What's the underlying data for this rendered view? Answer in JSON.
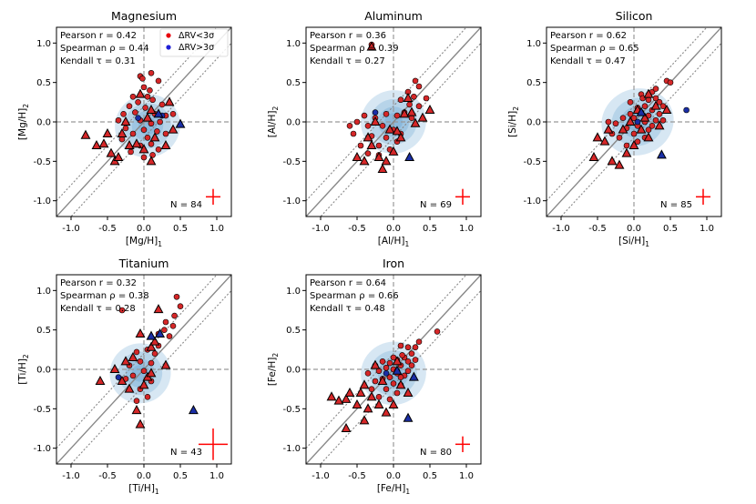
{
  "figure": {
    "legend": {
      "items": [
        {
          "label": "ΔRV<3σ",
          "color": "#e8000b"
        },
        {
          "label": "ΔRV>3σ",
          "color": "#1f1fd6"
        }
      ]
    },
    "colors": {
      "low_rv": "#d62728",
      "high_rv": "#1a2ea6",
      "kde": "#4a90c8",
      "identity": "#888888",
      "zero": "#999999",
      "error_cross": "#ff0000"
    },
    "tick_labels": [
      "-1.0",
      "-0.5",
      "0.0",
      "0.5",
      "1.0"
    ],
    "tick_values": [
      -1.0,
      -0.5,
      0.0,
      0.5,
      1.0
    ]
  },
  "chart_data": [
    {
      "type": "scatter",
      "id": "mg",
      "title": "Magnesium",
      "xlabel": "[Mg/H]",
      "ylabel": "[Mg/H]",
      "xlabel_sub": "1",
      "ylabel_sub": "2",
      "xlim": [
        -1.2,
        1.2
      ],
      "ylim": [
        -1.2,
        1.2
      ],
      "stats": [
        "Pearson r = 0.42",
        "Spearman ρ = 0.44",
        "Kendall τ = 0.31"
      ],
      "n_label": "N = 84",
      "err": [
        0.1,
        0.1
      ],
      "show_legend": true,
      "kde_center": [
        0.05,
        -0.05
      ],
      "kde_spread": [
        0.45,
        0.4
      ],
      "circles_low": [
        [
          -0.05,
          0.58
        ],
        [
          0.1,
          0.62
        ],
        [
          -0.02,
          0.55
        ],
        [
          0.2,
          0.52
        ],
        [
          0.0,
          0.44
        ],
        [
          0.08,
          0.4
        ],
        [
          -0.15,
          0.32
        ],
        [
          0.05,
          0.32
        ],
        [
          -0.08,
          0.25
        ],
        [
          0.12,
          0.28
        ],
        [
          -0.2,
          0.2
        ],
        [
          0.02,
          0.18
        ],
        [
          0.25,
          0.22
        ],
        [
          -0.28,
          0.1
        ],
        [
          -0.12,
          0.12
        ],
        [
          0.15,
          0.1
        ],
        [
          0.3,
          0.08
        ],
        [
          -0.35,
          0.02
        ],
        [
          -0.05,
          0.02
        ],
        [
          0.1,
          -0.02
        ],
        [
          0.22,
          0.0
        ],
        [
          -0.25,
          -0.08
        ],
        [
          0.0,
          -0.1
        ],
        [
          0.18,
          -0.12
        ],
        [
          -0.15,
          -0.15
        ],
        [
          0.05,
          -0.2
        ],
        [
          -0.3,
          -0.22
        ],
        [
          0.1,
          -0.28
        ],
        [
          -0.05,
          -0.3
        ],
        [
          0.2,
          -0.35
        ],
        [
          -0.18,
          -0.38
        ],
        [
          0.0,
          -0.45
        ],
        [
          0.12,
          -0.42
        ],
        [
          0.3,
          -0.15
        ],
        [
          0.4,
          0.1
        ]
      ],
      "circles_high": [
        [
          -0.08,
          0.05
        ],
        [
          0.25,
          0.08
        ]
      ],
      "tri_low": [
        [
          -0.8,
          -0.17
        ],
        [
          -0.65,
          -0.3
        ],
        [
          -0.55,
          -0.28
        ],
        [
          -0.45,
          -0.4
        ],
        [
          -0.4,
          -0.5
        ],
        [
          -0.35,
          -0.45
        ],
        [
          -0.3,
          -0.15
        ],
        [
          -0.2,
          -0.3
        ],
        [
          -0.1,
          -0.28
        ],
        [
          0.0,
          -0.35
        ],
        [
          0.1,
          -0.5
        ],
        [
          -0.5,
          -0.15
        ],
        [
          -0.25,
          0.0
        ],
        [
          0.05,
          0.05
        ],
        [
          0.15,
          -0.2
        ],
        [
          0.3,
          -0.3
        ],
        [
          0.4,
          -0.1
        ],
        [
          0.35,
          0.25
        ],
        [
          0.1,
          0.15
        ],
        [
          -0.05,
          0.35
        ]
      ],
      "tri_high": [
        [
          0.2,
          0.1
        ],
        [
          0.5,
          -0.03
        ]
      ]
    },
    {
      "type": "scatter",
      "id": "al",
      "title": "Aluminum",
      "xlabel": "[Al/H]",
      "ylabel": "[Al/H]",
      "xlabel_sub": "1",
      "ylabel_sub": "2",
      "xlim": [
        -1.2,
        1.2
      ],
      "ylim": [
        -1.2,
        1.2
      ],
      "stats": [
        "Pearson r = 0.36",
        "Spearman ρ = 0.39",
        "Kendall τ = 0.27"
      ],
      "n_label": "N = 69",
      "err": [
        0.1,
        0.1
      ],
      "show_legend": false,
      "kde_center": [
        0.0,
        0.0
      ],
      "kde_spread": [
        0.45,
        0.4
      ],
      "circles_low": [
        [
          -0.3,
          0.98
        ],
        [
          0.3,
          0.52
        ],
        [
          0.35,
          0.45
        ],
        [
          0.2,
          0.38
        ],
        [
          0.28,
          0.32
        ],
        [
          0.1,
          0.28
        ],
        [
          0.22,
          0.22
        ],
        [
          0.35,
          0.2
        ],
        [
          0.15,
          0.12
        ],
        [
          0.05,
          0.08
        ],
        [
          -0.1,
          0.1
        ],
        [
          -0.25,
          0.05
        ],
        [
          -0.5,
          0.0
        ],
        [
          -0.35,
          -0.05
        ],
        [
          -0.15,
          -0.05
        ],
        [
          0.0,
          -0.1
        ],
        [
          -0.55,
          -0.15
        ],
        [
          -0.3,
          -0.18
        ],
        [
          -0.1,
          -0.2
        ],
        [
          0.1,
          -0.15
        ],
        [
          -0.45,
          -0.3
        ],
        [
          -0.2,
          -0.3
        ],
        [
          -0.05,
          -0.35
        ],
        [
          -0.35,
          -0.4
        ],
        [
          0.05,
          -0.25
        ],
        [
          0.25,
          0.05
        ],
        [
          0.45,
          0.3
        ],
        [
          -0.6,
          -0.05
        ],
        [
          -0.4,
          0.08
        ],
        [
          -0.2,
          -0.42
        ]
      ],
      "circles_high": [
        [
          -0.25,
          0.12
        ]
      ],
      "tri_low": [
        [
          -0.3,
          0.95
        ],
        [
          -0.5,
          -0.45
        ],
        [
          -0.4,
          -0.5
        ],
        [
          -0.35,
          -0.2
        ],
        [
          -0.3,
          -0.3
        ],
        [
          -0.2,
          -0.45
        ],
        [
          -0.1,
          -0.5
        ],
        [
          0.0,
          -0.38
        ],
        [
          -0.05,
          -0.1
        ],
        [
          0.1,
          -0.2
        ],
        [
          0.2,
          0.3
        ],
        [
          0.3,
          -0.02
        ],
        [
          0.4,
          0.05
        ],
        [
          0.5,
          0.15
        ],
        [
          -0.15,
          -0.6
        ],
        [
          0.05,
          -0.12
        ],
        [
          -0.25,
          0.0
        ],
        [
          0.15,
          0.1
        ],
        [
          0.25,
          0.12
        ]
      ],
      "tri_high": [
        [
          0.22,
          -0.45
        ]
      ]
    },
    {
      "type": "scatter",
      "id": "si",
      "title": "Silicon",
      "xlabel": "[Si/H]",
      "ylabel": "[Si/H]",
      "xlabel_sub": "1",
      "ylabel_sub": "2",
      "xlim": [
        -1.2,
        1.2
      ],
      "ylim": [
        -1.2,
        1.2
      ],
      "stats": [
        "Pearson r = 0.62",
        "Spearman ρ = 0.65",
        "Kendall τ = 0.47"
      ],
      "n_label": "N = 85",
      "err": [
        0.1,
        0.1
      ],
      "show_legend": false,
      "kde_center": [
        0.05,
        0.0
      ],
      "kde_spread": [
        0.5,
        0.42
      ],
      "circles_low": [
        [
          0.45,
          0.52
        ],
        [
          0.5,
          0.5
        ],
        [
          0.1,
          0.35
        ],
        [
          0.25,
          0.38
        ],
        [
          0.3,
          0.3
        ],
        [
          0.2,
          0.28
        ],
        [
          0.35,
          0.25
        ],
        [
          0.15,
          0.2
        ],
        [
          0.05,
          0.18
        ],
        [
          0.4,
          0.2
        ],
        [
          0.25,
          0.15
        ],
        [
          0.1,
          0.12
        ],
        [
          -0.05,
          0.1
        ],
        [
          0.2,
          0.08
        ],
        [
          0.35,
          0.1
        ],
        [
          0.0,
          0.05
        ],
        [
          -0.15,
          0.05
        ],
        [
          0.15,
          0.0
        ],
        [
          0.3,
          0.02
        ],
        [
          -0.25,
          -0.02
        ],
        [
          0.05,
          -0.05
        ],
        [
          -0.1,
          -0.08
        ],
        [
          0.2,
          -0.1
        ],
        [
          -0.3,
          -0.15
        ],
        [
          0.0,
          -0.15
        ],
        [
          0.15,
          -0.2
        ],
        [
          -0.2,
          -0.2
        ],
        [
          0.05,
          -0.25
        ],
        [
          -0.1,
          -0.3
        ],
        [
          0.25,
          -0.05
        ],
        [
          0.4,
          0.02
        ],
        [
          -0.05,
          0.25
        ],
        [
          0.3,
          0.42
        ],
        [
          -0.35,
          0.0
        ],
        [
          0.12,
          0.3
        ]
      ],
      "circles_high": [
        [
          0.05,
          0.0
        ],
        [
          0.72,
          0.15
        ]
      ],
      "tri_low": [
        [
          -0.55,
          -0.45
        ],
        [
          -0.5,
          -0.2
        ],
        [
          -0.4,
          -0.25
        ],
        [
          -0.3,
          -0.5
        ],
        [
          -0.2,
          -0.55
        ],
        [
          -0.1,
          -0.4
        ],
        [
          0.0,
          -0.3
        ],
        [
          0.1,
          -0.1
        ],
        [
          0.2,
          -0.2
        ],
        [
          0.35,
          -0.05
        ],
        [
          0.45,
          0.15
        ],
        [
          0.3,
          0.2
        ],
        [
          0.2,
          0.35
        ],
        [
          -0.15,
          -0.1
        ],
        [
          -0.05,
          0.0
        ],
        [
          0.05,
          0.15
        ],
        [
          -0.35,
          -0.1
        ],
        [
          0.15,
          0.05
        ]
      ],
      "tri_high": [
        [
          0.38,
          -0.42
        ],
        [
          0.1,
          0.12
        ]
      ]
    },
    {
      "type": "scatter",
      "id": "ti",
      "title": "Titanium",
      "xlabel": "[Ti/H]",
      "ylabel": "[Ti/H]",
      "xlabel_sub": "1",
      "ylabel_sub": "2",
      "xlim": [
        -1.2,
        1.2
      ],
      "ylim": [
        -1.2,
        1.2
      ],
      "stats": [
        "Pearson r = 0.32",
        "Spearman ρ = 0.38",
        "Kendall τ = 0.28"
      ],
      "n_label": "N = 43",
      "err": [
        0.2,
        0.2
      ],
      "show_legend": false,
      "kde_center": [
        -0.05,
        -0.05
      ],
      "kde_spread": [
        0.42,
        0.38
      ],
      "circles_low": [
        [
          0.45,
          0.92
        ],
        [
          0.5,
          0.8
        ],
        [
          0.42,
          0.68
        ],
        [
          0.4,
          0.55
        ],
        [
          0.3,
          0.6
        ],
        [
          0.35,
          0.42
        ],
        [
          -0.3,
          0.75
        ],
        [
          0.2,
          0.3
        ],
        [
          0.15,
          0.2
        ],
        [
          0.05,
          0.25
        ],
        [
          -0.1,
          0.22
        ],
        [
          0.1,
          0.08
        ],
        [
          -0.05,
          0.1
        ],
        [
          -0.2,
          0.05
        ],
        [
          0.0,
          -0.02
        ],
        [
          -0.15,
          -0.08
        ],
        [
          0.1,
          -0.15
        ],
        [
          -0.25,
          -0.12
        ],
        [
          -0.05,
          -0.25
        ],
        [
          0.05,
          -0.35
        ],
        [
          -0.1,
          -0.4
        ],
        [
          0.2,
          0.45
        ],
        [
          0.28,
          0.5
        ]
      ],
      "circles_high": [
        [
          -0.35,
          -0.1
        ]
      ],
      "tri_low": [
        [
          -0.6,
          -0.15
        ],
        [
          -0.4,
          0.0
        ],
        [
          -0.3,
          -0.15
        ],
        [
          -0.2,
          -0.25
        ],
        [
          -0.1,
          -0.52
        ],
        [
          -0.05,
          -0.7
        ],
        [
          0.0,
          -0.2
        ],
        [
          0.1,
          0.28
        ],
        [
          0.2,
          0.76
        ],
        [
          0.3,
          0.05
        ],
        [
          -0.15,
          0.15
        ],
        [
          0.05,
          -0.1
        ],
        [
          -0.25,
          0.1
        ],
        [
          0.15,
          0.35
        ],
        [
          -0.05,
          0.45
        ],
        [
          0.1,
          -0.05
        ]
      ],
      "tri_high": [
        [
          0.68,
          -0.52
        ],
        [
          0.22,
          0.45
        ],
        [
          0.1,
          0.42
        ]
      ]
    },
    {
      "type": "scatter",
      "id": "fe",
      "title": "Iron",
      "xlabel": "[Fe/H]",
      "ylabel": "[Fe/H]",
      "xlabel_sub": "1",
      "ylabel_sub": "2",
      "xlim": [
        -1.2,
        1.2
      ],
      "ylim": [
        -1.2,
        1.2
      ],
      "stats": [
        "Pearson r = 0.64",
        "Spearman ρ = 0.66",
        "Kendall τ = 0.48"
      ],
      "n_label": "N = 80",
      "err": [
        0.1,
        0.1
      ],
      "show_legend": false,
      "kde_center": [
        0.0,
        -0.05
      ],
      "kde_spread": [
        0.45,
        0.4
      ],
      "circles_low": [
        [
          0.6,
          0.48
        ],
        [
          0.35,
          0.35
        ],
        [
          0.3,
          0.28
        ],
        [
          0.2,
          0.28
        ],
        [
          0.1,
          0.3
        ],
        [
          0.25,
          0.2
        ],
        [
          0.15,
          0.15
        ],
        [
          0.05,
          0.12
        ],
        [
          0.2,
          0.1
        ],
        [
          -0.05,
          0.08
        ],
        [
          0.1,
          0.05
        ],
        [
          0.0,
          0.0
        ],
        [
          -0.1,
          0.02
        ],
        [
          0.05,
          -0.05
        ],
        [
          -0.2,
          -0.02
        ],
        [
          0.15,
          -0.08
        ],
        [
          -0.05,
          -0.1
        ],
        [
          -0.15,
          -0.12
        ],
        [
          0.0,
          -0.18
        ],
        [
          -0.25,
          -0.15
        ],
        [
          0.1,
          -0.2
        ],
        [
          -0.1,
          -0.25
        ],
        [
          -0.3,
          -0.25
        ],
        [
          0.05,
          -0.3
        ],
        [
          -0.2,
          -0.35
        ],
        [
          -0.05,
          -0.38
        ],
        [
          0.1,
          -0.1
        ],
        [
          -0.35,
          -0.05
        ],
        [
          0.2,
          -0.02
        ],
        [
          0.25,
          0.05
        ],
        [
          -0.15,
          0.1
        ],
        [
          0.0,
          0.15
        ],
        [
          -0.25,
          0.05
        ],
        [
          0.12,
          0.18
        ],
        [
          0.3,
          0.12
        ]
      ],
      "circles_high": [
        [
          -0.1,
          -0.05
        ],
        [
          0.05,
          -0.02
        ]
      ],
      "tri_low": [
        [
          -0.85,
          -0.35
        ],
        [
          -0.75,
          -0.4
        ],
        [
          -0.65,
          -0.38
        ],
        [
          -0.6,
          -0.3
        ],
        [
          -0.5,
          -0.45
        ],
        [
          -0.45,
          -0.3
        ],
        [
          -0.4,
          -0.2
        ],
        [
          -0.35,
          -0.5
        ],
        [
          -0.3,
          -0.35
        ],
        [
          -0.2,
          -0.45
        ],
        [
          -0.1,
          -0.55
        ],
        [
          0.0,
          -0.45
        ],
        [
          -0.65,
          -0.75
        ],
        [
          -0.4,
          -0.65
        ],
        [
          -0.25,
          0.05
        ],
        [
          0.1,
          -0.2
        ],
        [
          0.2,
          -0.3
        ],
        [
          -0.15,
          -0.15
        ],
        [
          0.05,
          0.1
        ]
      ],
      "tri_high": [
        [
          0.2,
          -0.62
        ],
        [
          0.28,
          -0.1
        ],
        [
          0.05,
          -0.02
        ]
      ]
    }
  ]
}
